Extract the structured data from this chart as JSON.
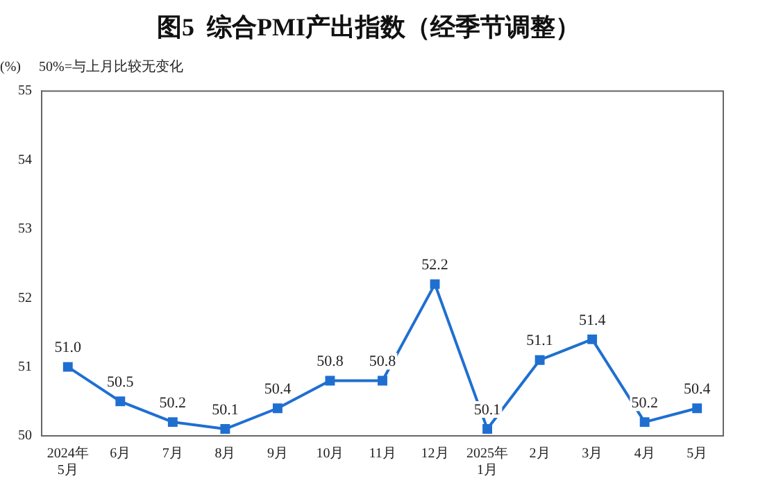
{
  "chart_data": {
    "type": "line",
    "title": "图5  综合PMI产出指数（经季节调整）",
    "ylabel": "(%)",
    "annotations": [
      "50%=与上月比较无变化"
    ],
    "categories": [
      "2024年\n5月",
      "6月",
      "7月",
      "8月",
      "9月",
      "10月",
      "11月",
      "12月",
      "2025年\n1月",
      "2月",
      "3月",
      "4月",
      "5月"
    ],
    "series": [
      {
        "color": "#1f6fd0",
        "values": [
          51.0,
          50.5,
          50.2,
          50.1,
          50.4,
          50.8,
          50.8,
          52.2,
          50.1,
          51.1,
          51.4,
          50.2,
          50.4
        ],
        "value_labels": [
          "51.0",
          "50.5",
          "50.2",
          "50.1",
          "50.4",
          "50.8",
          "50.8",
          "52.2",
          "50.1",
          "51.1",
          "51.4",
          "50.2",
          "50.4"
        ]
      }
    ],
    "ylim": [
      50,
      55
    ],
    "yticks": [
      50,
      51,
      52,
      53,
      54,
      55
    ],
    "grid": false,
    "legend": false,
    "marker": "square",
    "line_style": "solid"
  }
}
